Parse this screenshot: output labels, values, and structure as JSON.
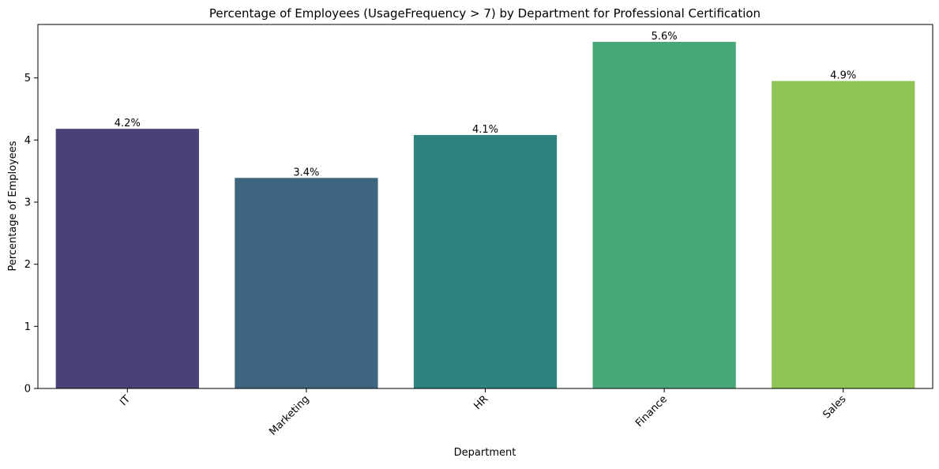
{
  "chart_data": {
    "type": "bar",
    "title": "Percentage of Employees (UsageFrequency > 7) by Department for Professional Certification",
    "xlabel": "Department",
    "ylabel": "Percentage of Employees",
    "categories": [
      "IT",
      "Marketing",
      "HR",
      "Finance",
      "Sales"
    ],
    "values": [
      4.18,
      3.39,
      4.08,
      5.58,
      4.95
    ],
    "data_labels": [
      "4.2%",
      "3.4%",
      "4.1%",
      "5.6%",
      "4.9%"
    ],
    "colors": [
      "#4a4177",
      "#3e6681",
      "#2e837e",
      "#46a876",
      "#8fc556"
    ],
    "ylim": [
      0,
      5.86
    ],
    "yticks": [
      0,
      1,
      2,
      3,
      4,
      5
    ],
    "ytick_labels": [
      "0",
      "1",
      "2",
      "3",
      "4",
      "5"
    ],
    "grid": false,
    "legend": "none",
    "xtick_rotation": "45 degrees"
  }
}
